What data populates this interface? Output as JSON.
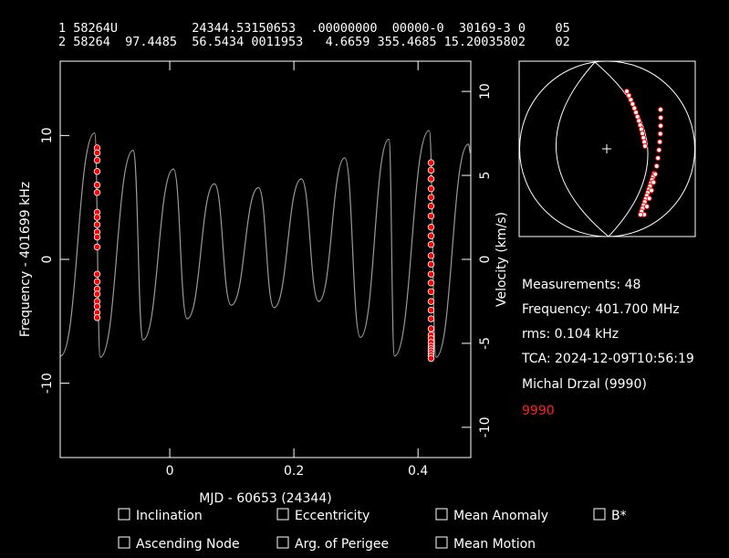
{
  "tle": {
    "line1": "1 58264U          24344.53150653  .00000000  00000-0  30169-3 0    05",
    "line2": "2 58264  97.4485  56.5434 0011953   4.6659 355.4685 15.20035802    02"
  },
  "chart_data": {
    "type": "scatter",
    "x_label": "MJD - 60653 (24344)",
    "y_label": "Frequency - 401699 kHz",
    "y2_label": "Velocity (km/s)",
    "xlim": [
      -0.1765,
      0.485
    ],
    "xticks": [
      0,
      0.2,
      0.4
    ],
    "ylim": [
      -16,
      16
    ],
    "yticks": [
      -10,
      0,
      10
    ],
    "y2lim": [
      -11.8,
      11.8
    ],
    "y2ticks": [
      -10,
      -5,
      0,
      5,
      10
    ],
    "series": [
      {
        "type": "line",
        "color": "#9a9a9a",
        "x": [
          -0.176,
          -0.121,
          -0.112,
          -0.059,
          -0.043,
          0.006,
          0.028,
          0.072,
          0.099,
          0.143,
          0.168,
          0.212,
          0.24,
          0.282,
          0.307,
          0.353,
          0.362,
          0.418,
          0.429,
          0.481,
          0.485
        ],
        "values": [
          -7.8,
          10.2,
          -7.9,
          8.8,
          -6.5,
          7.3,
          -4.8,
          6.1,
          -3.7,
          5.8,
          -3.9,
          6.5,
          -3.4,
          8.2,
          -6.3,
          9.7,
          -7.8,
          10.4,
          -7.9,
          9.3,
          8.5
        ]
      },
      {
        "type": "scatter",
        "color": "#ff0000",
        "x": [
          -0.117,
          -0.117,
          -0.117,
          -0.117,
          -0.117,
          -0.117,
          -0.117,
          -0.117,
          -0.117,
          -0.117,
          -0.117,
          -0.117,
          -0.117,
          -0.117,
          -0.117,
          -0.117,
          -0.117,
          -0.117,
          -0.117,
          -0.117,
          0.421,
          0.421,
          0.421,
          0.421,
          0.421,
          0.421,
          0.421,
          0.421,
          0.421,
          0.421,
          0.421,
          0.421,
          0.421,
          0.421,
          0.421,
          0.421,
          0.421,
          0.421,
          0.421,
          0.421,
          0.421,
          0.421,
          0.421,
          0.421,
          0.421,
          0.421,
          0.421,
          0.421
        ],
        "values": [
          9.0,
          8.6,
          8.0,
          7.1,
          6.0,
          5.4,
          3.8,
          3.4,
          2.8,
          2.2,
          1.8,
          1.0,
          -1.2,
          -1.8,
          -2.4,
          -2.8,
          -3.4,
          -3.8,
          -4.3,
          -4.7,
          7.8,
          7.2,
          6.5,
          5.7,
          5.0,
          4.3,
          3.5,
          2.6,
          1.9,
          1.2,
          0.3,
          -0.4,
          -1.2,
          -1.9,
          -2.6,
          -3.4,
          -4.1,
          -4.8,
          -5.6,
          -6.1,
          -6.4,
          -6.7,
          -7.0,
          -7.2,
          -7.4,
          -7.6,
          -7.8,
          -8.0
        ]
      }
    ]
  },
  "info": {
    "measurements": "Measurements: 48",
    "frequency": "Frequency: 401.700 MHz",
    "rms": "rms: 0.104 kHz",
    "tca": "TCA: 2024-12-09T10:56:19",
    "observer": "Michal Drzal (9990)",
    "site": "9990"
  },
  "options": [
    "Inclination",
    "Eccentricity",
    "Mean Anomaly",
    "B*",
    "Ascending Node",
    "Arg. of Perigee",
    "Mean Motion"
  ]
}
